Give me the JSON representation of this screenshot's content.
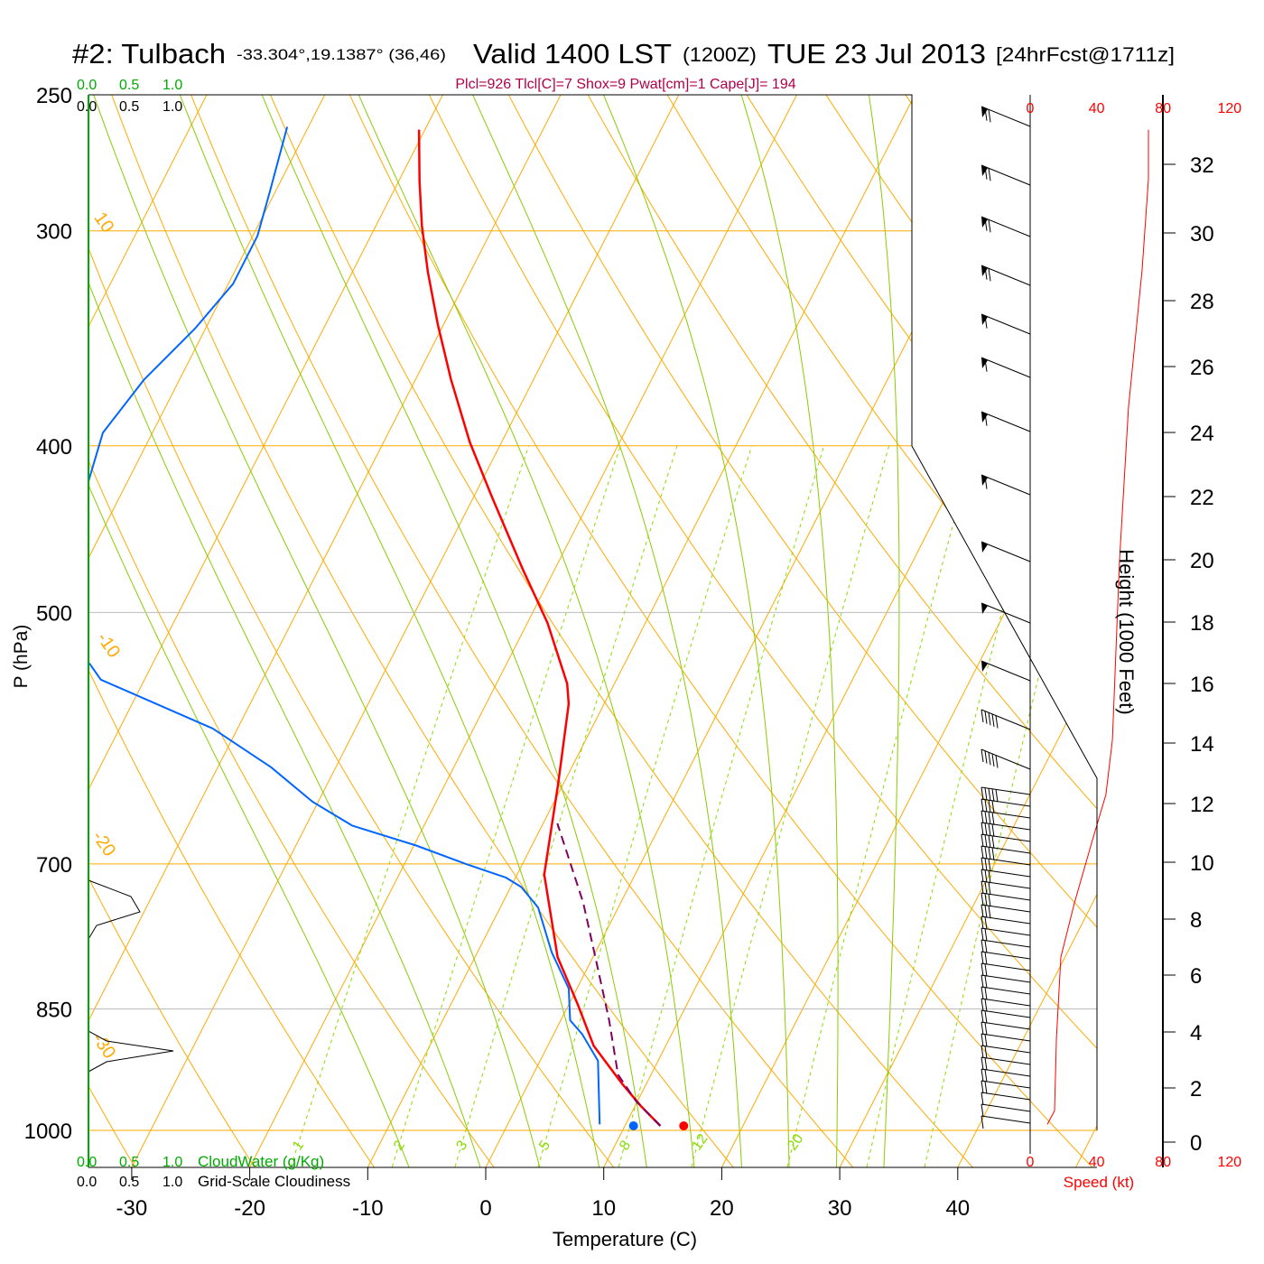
{
  "chart_data": {
    "type": "line",
    "title": {
      "station": "#2: Tulbach",
      "coords": "-33.304°,19.1387° (36,46)",
      "valid": "Valid 1400 LST",
      "zulu": "(1200Z)",
      "date": "TUE 23 Jul 2013",
      "forecast": "[24hrFcst@1711z]"
    },
    "indices": "Plcl=926 Tlcl[C]=7 Shox=9 Pwat[cm]=1 Cape[J]= 194",
    "xlabel": "Temperature (C)",
    "ylabel": "P (hPa)",
    "height_label": "Height (1000 Feet)",
    "speed_label": "Speed (kt)",
    "cloudwater_label": "CloudWater (g/Kg)",
    "cloudiness_label": "Grid-Scale Cloudiness",
    "cloud_scale_ticks": [
      "0.0",
      "0.5",
      "1.0"
    ],
    "x_ticks": [
      -30,
      -20,
      -10,
      0,
      10,
      20,
      30,
      40
    ],
    "p_ticks": [
      250,
      300,
      400,
      500,
      700,
      850,
      1000
    ],
    "height_ticks": [
      0,
      2,
      4,
      6,
      8,
      10,
      12,
      14,
      16,
      18,
      20,
      22,
      24,
      26,
      28,
      30,
      32
    ],
    "speed_ticks": [
      0,
      40,
      80,
      120
    ],
    "isotherm_labels": [
      "0",
      "10",
      "20",
      "30",
      "10",
      "-10",
      "-20",
      "-30"
    ],
    "mixing_ratio_labels": [
      "1",
      "2",
      "3",
      "5",
      "8",
      "12",
      "20"
    ],
    "xlim": [
      -34,
      52
    ],
    "plim": [
      1050,
      250
    ],
    "colors": {
      "temperature": "#ff0000",
      "dewpoint": "#0066ff",
      "parcel": "#800060",
      "isotherm": "#ffaa00",
      "moist": "#88cc00",
      "mixing": "#88dd00",
      "cloudwater": "#00aa00",
      "indices": "#b0004a"
    },
    "series": [
      {
        "name": "Temperature",
        "p": [
          994,
          968,
          939,
          893,
          844,
          793,
          710,
          630,
          565,
          550,
          507,
          472,
          428,
          398,
          366,
          340,
          317,
          298,
          281,
          262
        ],
        "t": [
          13.0,
          10.5,
          7.9,
          3.9,
          0.7,
          -3.0,
          -7.7,
          -10.4,
          -13.0,
          -14.0,
          -18.3,
          -22.7,
          -28.5,
          -32.7,
          -37.0,
          -40.5,
          -43.6,
          -46.1,
          -48.2,
          -50.5
        ]
      },
      {
        "name": "Dewpoint",
        "p": [
          992,
          911,
          879,
          863,
          827,
          788,
          742,
          722,
          713,
          700,
          683,
          665,
          644,
          615,
          584,
          547,
          535
        ],
        "t": [
          7.8,
          4.9,
          2.4,
          0.8,
          -0.7,
          -3.7,
          -6.8,
          -9.1,
          -10.8,
          -14.8,
          -19.8,
          -26.1,
          -30.5,
          -35.5,
          -42.1,
          -53.7,
          -55.4
        ]
      },
      {
        "name": "Dewpoint upper",
        "p": [
          420,
          393,
          366,
          342,
          322,
          302,
          284,
          261
        ],
        "t": [
          -63.3,
          -64.2,
          -63.0,
          -60.9,
          -59.6,
          -59.6,
          -60.5,
          -61.8
        ]
      },
      {
        "name": "Parcel",
        "p": [
          994,
          962,
          928,
          863,
          793,
          737,
          663
        ],
        "t": [
          13.0,
          9.9,
          7.2,
          4.1,
          0.2,
          -3.2,
          -8.8
        ]
      },
      {
        "name": "Wind speed (kt)",
        "p": [
          992,
          974,
          884,
          793,
          738,
          678,
          638,
          593,
          466,
          380,
          316,
          280,
          262
        ],
        "speed": [
          10.3,
          14.7,
          15.8,
          18.5,
          26.6,
          37.5,
          45.6,
          49.5,
          53.8,
          59.2,
          67.4,
          71.2,
          71.2
        ]
      }
    ],
    "surface": {
      "t": 14.6,
      "td": 10.5,
      "p": 994
    },
    "grid": true
  }
}
